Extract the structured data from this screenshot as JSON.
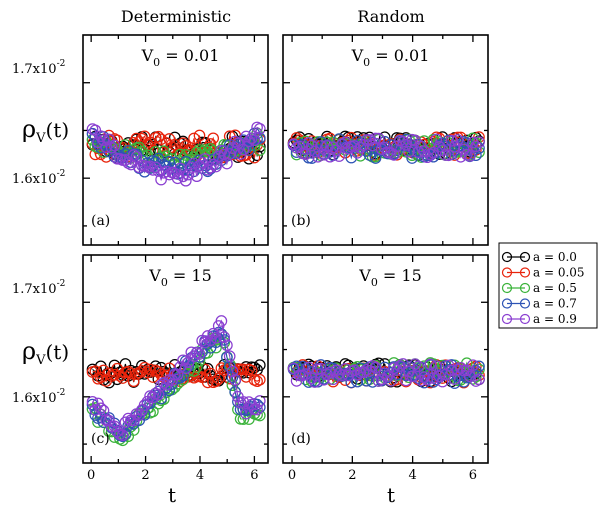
{
  "figure": {
    "column_titles": [
      "Deterministic",
      "Random"
    ],
    "xlabel": "t",
    "ylabel_main": "ρ",
    "ylabel_sub": "V",
    "ylabel_tail": "(t)",
    "ytick_upper": {
      "mantissa": "1.7x10",
      "exp": "-2"
    },
    "ytick_lower": {
      "mantissa": "1.6x10",
      "exp": "-2"
    }
  },
  "legend": {
    "title": "",
    "placement": "right",
    "entries": [
      {
        "label": "a = 0.0",
        "color": "#000000"
      },
      {
        "label": "a = 0.05",
        "color": "#e8230b"
      },
      {
        "label": "a = 0.5",
        "color": "#3ab33a"
      },
      {
        "label": "a = 0.7",
        "color": "#2d53b5"
      },
      {
        "label": "a = 0.9",
        "color": "#8a3fd1"
      }
    ]
  },
  "chart_data": [
    {
      "type": "line",
      "panel": "(a)",
      "column": "Deterministic",
      "title": "V₀ = 0.01",
      "xlim": [
        -0.3,
        6.5
      ],
      "ylim": [
        0.0153,
        0.0175
      ],
      "xticks": [
        0,
        2,
        4,
        6
      ],
      "yticks": [
        0.016,
        0.017
      ],
      "series": [
        {
          "name": "a = 0.0",
          "color": "#000000",
          "pattern": "flat",
          "center": 0.01632,
          "amp": 0.0,
          "noise": 0.00012
        },
        {
          "name": "a = 0.05",
          "color": "#e8230b",
          "pattern": "flat",
          "center": 0.01633,
          "amp": 0.0,
          "noise": 0.00012
        },
        {
          "name": "a = 0.5",
          "color": "#3ab33a",
          "pattern": "dip",
          "center": 0.01638,
          "amp": 0.00018,
          "noise": 0.0001
        },
        {
          "name": "a = 0.7",
          "color": "#2d53b5",
          "pattern": "dip",
          "center": 0.01645,
          "amp": 0.00035,
          "noise": 9e-05
        },
        {
          "name": "a = 0.9",
          "color": "#8a3fd1",
          "pattern": "dip",
          "center": 0.0165,
          "amp": 0.00045,
          "noise": 9e-05
        }
      ]
    },
    {
      "type": "line",
      "panel": "(b)",
      "column": "Random",
      "title": "V₀ = 0.01",
      "xlim": [
        -0.3,
        6.5
      ],
      "ylim": [
        0.0153,
        0.0175
      ],
      "xticks": [
        0,
        2,
        4,
        6
      ],
      "yticks": [
        0.016,
        0.017
      ],
      "series": [
        {
          "name": "a = 0.0",
          "color": "#000000",
          "pattern": "flat",
          "center": 0.01634,
          "amp": 0.0,
          "noise": 0.0001
        },
        {
          "name": "a = 0.05",
          "color": "#e8230b",
          "pattern": "flat",
          "center": 0.01633,
          "amp": 0.0,
          "noise": 0.0001
        },
        {
          "name": "a = 0.5",
          "color": "#3ab33a",
          "pattern": "flat",
          "center": 0.01632,
          "amp": 0.0,
          "noise": 0.0001
        },
        {
          "name": "a = 0.7",
          "color": "#2d53b5",
          "pattern": "flat",
          "center": 0.01631,
          "amp": 0.0,
          "noise": 0.0001
        },
        {
          "name": "a = 0.9",
          "color": "#8a3fd1",
          "pattern": "flat",
          "center": 0.01632,
          "amp": 0.0,
          "noise": 0.0001
        }
      ]
    },
    {
      "type": "line",
      "panel": "(c)",
      "column": "Deterministic",
      "title": "V₀ = 15",
      "xlim": [
        -0.3,
        6.5
      ],
      "ylim": [
        0.0153,
        0.0175
      ],
      "xticks": [
        0,
        2,
        4,
        6
      ],
      "yticks": [
        0.016,
        0.017
      ],
      "series": [
        {
          "name": "a = 0.0",
          "color": "#000000",
          "pattern": "flat",
          "center": 0.01625,
          "amp": 0.0,
          "noise": 0.0001
        },
        {
          "name": "a = 0.05",
          "color": "#e8230b",
          "pattern": "flat",
          "center": 0.01623,
          "amp": 0.0,
          "noise": 8e-05
        },
        {
          "name": "a = 0.5",
          "color": "#3ab33a",
          "pattern": "ramp",
          "center": 0.01585,
          "amp": 0.0008,
          "noise": 8e-05
        },
        {
          "name": "a = 0.7",
          "color": "#2d53b5",
          "pattern": "ramp",
          "center": 0.0159,
          "amp": 0.0008,
          "noise": 7e-05
        },
        {
          "name": "a = 0.9",
          "color": "#8a3fd1",
          "pattern": "ramp",
          "center": 0.01593,
          "amp": 0.00082,
          "noise": 7e-05
        }
      ]
    },
    {
      "type": "line",
      "panel": "(d)",
      "column": "Random",
      "title": "V₀ = 15",
      "xlim": [
        -0.3,
        6.5
      ],
      "ylim": [
        0.0153,
        0.0175
      ],
      "xticks": [
        0,
        2,
        4,
        6
      ],
      "yticks": [
        0.016,
        0.017
      ],
      "series": [
        {
          "name": "a = 0.0",
          "color": "#000000",
          "pattern": "flat",
          "center": 0.01626,
          "amp": 0.0,
          "noise": 0.0001
        },
        {
          "name": "a = 0.05",
          "color": "#e8230b",
          "pattern": "flat",
          "center": 0.01625,
          "amp": 0.0,
          "noise": 0.0001
        },
        {
          "name": "a = 0.5",
          "color": "#3ab33a",
          "pattern": "flat",
          "center": 0.01626,
          "amp": 0.0,
          "noise": 0.0001
        },
        {
          "name": "a = 0.7",
          "color": "#2d53b5",
          "pattern": "flat",
          "center": 0.01624,
          "amp": 0.0,
          "noise": 0.0001
        },
        {
          "name": "a = 0.9",
          "color": "#8a3fd1",
          "pattern": "flat",
          "center": 0.01625,
          "amp": 0.0,
          "noise": 0.0001
        }
      ]
    }
  ]
}
